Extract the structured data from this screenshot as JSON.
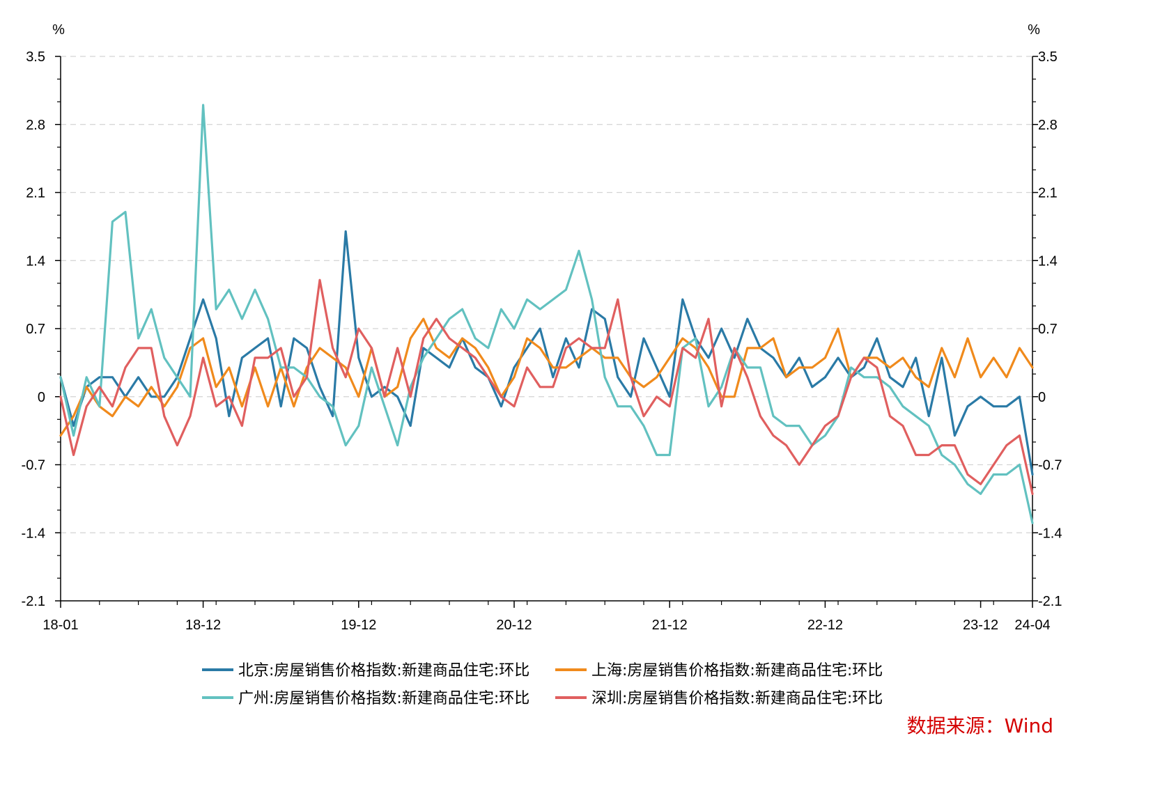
{
  "chart_data": {
    "type": "line",
    "title": "",
    "ylabel_left": "%",
    "ylabel_right": "%",
    "ylim": [
      -2.1,
      3.5
    ],
    "yticks": [
      -2.1,
      -1.4,
      -0.7,
      0,
      0.7,
      1.4,
      2.1,
      2.8,
      3.5
    ],
    "ytick_labels": [
      "-2.1",
      "-1.4",
      "-0.7",
      "0",
      "0.7",
      "1.4",
      "2.1",
      "2.8",
      "3.5"
    ],
    "grid": true,
    "x_tick_labels": [
      {
        "index": 0,
        "label": "18-01"
      },
      {
        "index": 11,
        "label": "18-12"
      },
      {
        "index": 23,
        "label": "19-12"
      },
      {
        "index": 35,
        "label": "20-12"
      },
      {
        "index": 47,
        "label": "21-12"
      },
      {
        "index": 59,
        "label": "22-12"
      },
      {
        "index": 71,
        "label": "23-12"
      },
      {
        "index": 75,
        "label": "24-04"
      }
    ],
    "n_points": 76,
    "series": [
      {
        "name": "北京:房屋销售价格指数:新建商品住宅:环比",
        "color": "#2a7aa6",
        "values": [
          0.2,
          -0.3,
          0.1,
          0.2,
          0.2,
          0.0,
          0.2,
          0.0,
          0.0,
          0.2,
          0.6,
          1.0,
          0.6,
          -0.2,
          0.4,
          0.5,
          0.6,
          -0.1,
          0.6,
          0.5,
          0.1,
          -0.2,
          1.7,
          0.4,
          0.0,
          0.1,
          0.0,
          -0.3,
          0.5,
          0.4,
          0.3,
          0.6,
          0.3,
          0.2,
          -0.1,
          0.3,
          0.5,
          0.7,
          0.2,
          0.6,
          0.3,
          0.9,
          0.8,
          0.2,
          0.0,
          0.6,
          0.3,
          0.0,
          1.0,
          0.6,
          0.4,
          0.7,
          0.4,
          0.8,
          0.5,
          0.4,
          0.2,
          0.4,
          0.1,
          0.2,
          0.4,
          0.2,
          0.3,
          0.6,
          0.2,
          0.1,
          0.4,
          -0.2,
          0.4,
          -0.4,
          -0.1,
          0.0,
          -0.1,
          -0.1,
          0.0,
          -0.8
        ]
      },
      {
        "name": "上海:房屋销售价格指数:新建商品住宅:环比",
        "color": "#f08a1c",
        "values": [
          -0.4,
          -0.2,
          0.1,
          -0.1,
          -0.2,
          0.0,
          -0.1,
          0.1,
          -0.1,
          0.1,
          0.5,
          0.6,
          0.1,
          0.3,
          -0.1,
          0.3,
          -0.1,
          0.3,
          -0.1,
          0.3,
          0.5,
          0.4,
          0.3,
          0.0,
          0.5,
          0.0,
          0.1,
          0.6,
          0.8,
          0.5,
          0.4,
          0.6,
          0.5,
          0.3,
          0.0,
          0.2,
          0.6,
          0.5,
          0.3,
          0.3,
          0.4,
          0.5,
          0.4,
          0.4,
          0.2,
          0.1,
          0.2,
          0.4,
          0.6,
          0.5,
          0.3,
          0.0,
          0.0,
          0.5,
          0.5,
          0.6,
          0.2,
          0.3,
          0.3,
          0.4,
          0.7,
          0.2,
          0.4,
          0.4,
          0.3,
          0.4,
          0.2,
          0.1,
          0.5,
          0.2,
          0.6,
          0.2,
          0.4,
          0.2,
          0.5,
          0.3
        ]
      },
      {
        "name": "广州:房屋销售价格指数:新建商品住宅:环比",
        "color": "#62c1c0",
        "values": [
          0.2,
          -0.4,
          0.2,
          -0.1,
          1.8,
          1.9,
          0.6,
          0.9,
          0.4,
          0.2,
          0.0,
          3.0,
          0.9,
          1.1,
          0.8,
          1.1,
          0.8,
          0.3,
          0.3,
          0.2,
          0.0,
          -0.1,
          -0.5,
          -0.3,
          0.3,
          -0.1,
          -0.5,
          0.1,
          0.4,
          0.6,
          0.8,
          0.9,
          0.6,
          0.5,
          0.9,
          0.7,
          1.0,
          0.9,
          1.0,
          1.1,
          1.5,
          1.0,
          0.2,
          -0.1,
          -0.1,
          -0.3,
          -0.6,
          -0.6,
          0.5,
          0.6,
          -0.1,
          0.1,
          0.5,
          0.3,
          0.3,
          -0.2,
          -0.3,
          -0.3,
          -0.5,
          -0.4,
          -0.2,
          0.3,
          0.2,
          0.2,
          0.1,
          -0.1,
          -0.2,
          -0.3,
          -0.6,
          -0.7,
          -0.9,
          -1.0,
          -0.8,
          -0.8,
          -0.7,
          -1.3
        ]
      },
      {
        "name": "深圳:房屋销售价格指数:新建商品住宅:环比",
        "color": "#e05f5f",
        "values": [
          0.0,
          -0.6,
          -0.1,
          0.1,
          -0.1,
          0.3,
          0.5,
          0.5,
          -0.2,
          -0.5,
          -0.2,
          0.4,
          -0.1,
          0.0,
          -0.3,
          0.4,
          0.4,
          0.5,
          0.0,
          0.2,
          1.2,
          0.5,
          0.2,
          0.7,
          0.5,
          0.0,
          0.5,
          0.0,
          0.6,
          0.8,
          0.6,
          0.5,
          0.4,
          0.2,
          0.0,
          -0.1,
          0.3,
          0.1,
          0.1,
          0.5,
          0.6,
          0.5,
          0.5,
          1.0,
          0.2,
          -0.2,
          0.0,
          -0.1,
          0.5,
          0.4,
          0.8,
          -0.1,
          0.5,
          0.2,
          -0.2,
          -0.4,
          -0.5,
          -0.7,
          -0.5,
          -0.3,
          -0.2,
          0.2,
          0.4,
          0.3,
          -0.2,
          -0.3,
          -0.6,
          -0.6,
          -0.5,
          -0.5,
          -0.8,
          -0.9,
          -0.7,
          -0.5,
          -0.4,
          -1.0
        ]
      }
    ],
    "legend": {
      "position": "bottom",
      "entries": [
        "北京:房屋销售价格指数:新建商品住宅:环比",
        "上海:房屋销售价格指数:新建商品住宅:环比",
        "广州:房屋销售价格指数:新建商品住宅:环比",
        "深圳:房屋销售价格指数:新建商品住宅:环比"
      ]
    },
    "source_label": "数据来源：Wind"
  }
}
